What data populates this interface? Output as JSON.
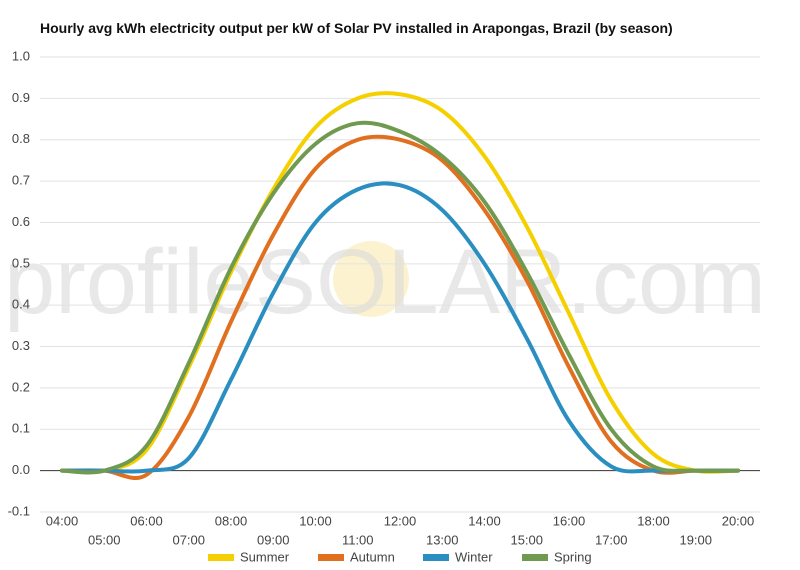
{
  "chart_data": {
    "type": "line",
    "title": "Hourly avg kWh electricity output per kW of Solar PV installed in Arapongas, Brazil (by season)",
    "watermark": "profileSOLAR.com",
    "categories": [
      "04:00",
      "05:00",
      "06:00",
      "07:00",
      "08:00",
      "09:00",
      "10:00",
      "11:00",
      "12:00",
      "13:00",
      "14:00",
      "15:00",
      "16:00",
      "17:00",
      "18:00",
      "19:00",
      "20:00"
    ],
    "series": [
      {
        "name": "Summer",
        "color": "#f5d000",
        "values": [
          0,
          0,
          0.05,
          0.25,
          0.48,
          0.68,
          0.83,
          0.9,
          0.91,
          0.87,
          0.76,
          0.59,
          0.38,
          0.17,
          0.04,
          0,
          0
        ]
      },
      {
        "name": "Autumn",
        "color": "#e07020",
        "values": [
          0,
          0,
          -0.01,
          0.13,
          0.36,
          0.57,
          0.73,
          0.8,
          0.8,
          0.75,
          0.63,
          0.46,
          0.25,
          0.07,
          0,
          0,
          0
        ]
      },
      {
        "name": "Winter",
        "color": "#2a8fc0",
        "values": [
          0,
          0,
          0,
          0.03,
          0.22,
          0.43,
          0.6,
          0.68,
          0.69,
          0.63,
          0.5,
          0.32,
          0.12,
          0.01,
          0,
          0,
          0
        ]
      },
      {
        "name": "Spring",
        "color": "#6f9a4f",
        "values": [
          0,
          0,
          0.06,
          0.26,
          0.49,
          0.67,
          0.79,
          0.84,
          0.82,
          0.76,
          0.65,
          0.48,
          0.28,
          0.1,
          0.01,
          0,
          0
        ]
      }
    ],
    "ylim": [
      -0.1,
      1.0
    ],
    "yticks": [
      -0.1,
      {
        "value": 0,
        "label": "0.0"
      },
      0.1,
      0.2,
      0.3,
      0.4,
      0.5,
      0.6,
      0.7,
      0.8,
      0.9,
      {
        "value": 1,
        "label": "1.0"
      }
    ],
    "grid": true,
    "legend": "bottom"
  }
}
